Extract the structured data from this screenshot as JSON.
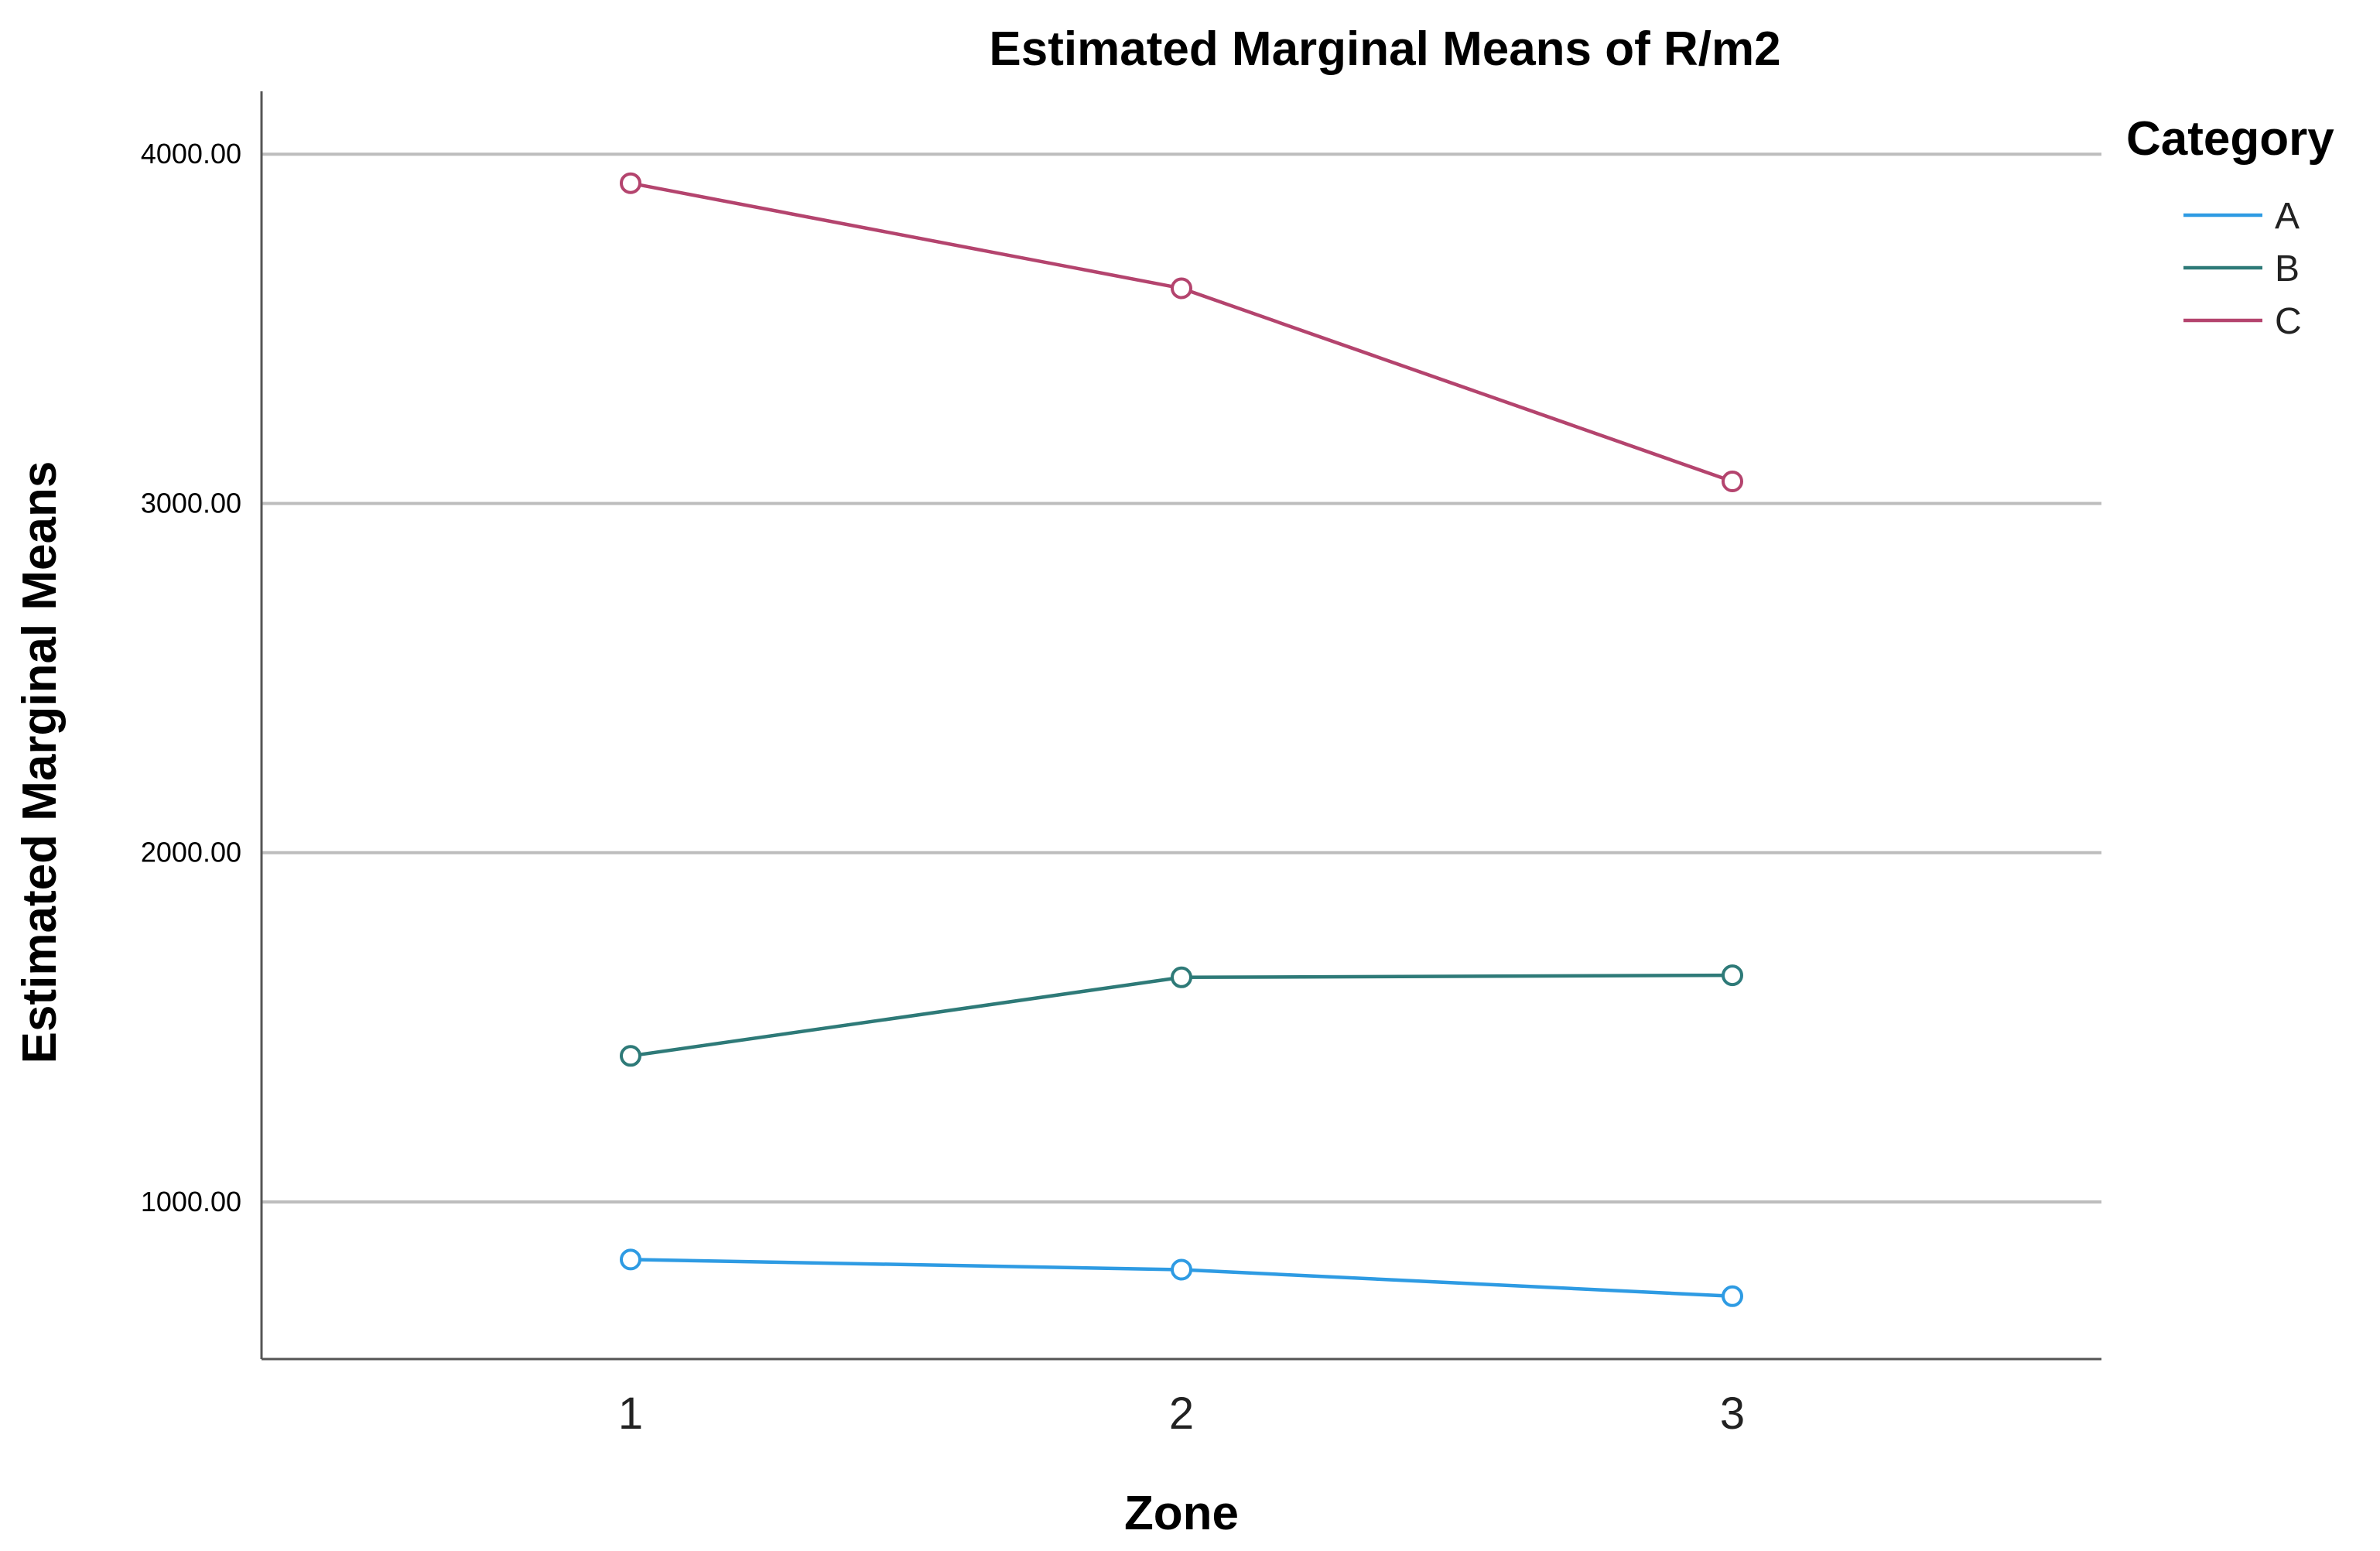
{
  "chart_data": {
    "type": "line",
    "title": "Estimated Marginal Means of R/m2",
    "xlabel": "Zone",
    "ylabel": "Estimated Marginal Means",
    "categories": [
      "1",
      "2",
      "3"
    ],
    "y_ticks": [
      1000,
      2000,
      3000,
      4000
    ],
    "y_tick_labels": [
      "1000.00",
      "2000.00",
      "3000.00",
      "4000.00"
    ],
    "ylim": [
      550,
      4180
    ],
    "grid": true,
    "legend": {
      "title": "Category",
      "position": "top-right"
    },
    "series": [
      {
        "name": "A",
        "color": "#2e9be3",
        "values": [
          835,
          806,
          730
        ]
      },
      {
        "name": "B",
        "color": "#2e7a78",
        "values": [
          1418,
          1643,
          1649
        ]
      },
      {
        "name": "C",
        "color": "#b4446e",
        "values": [
          3917,
          3616,
          3063
        ]
      }
    ]
  }
}
